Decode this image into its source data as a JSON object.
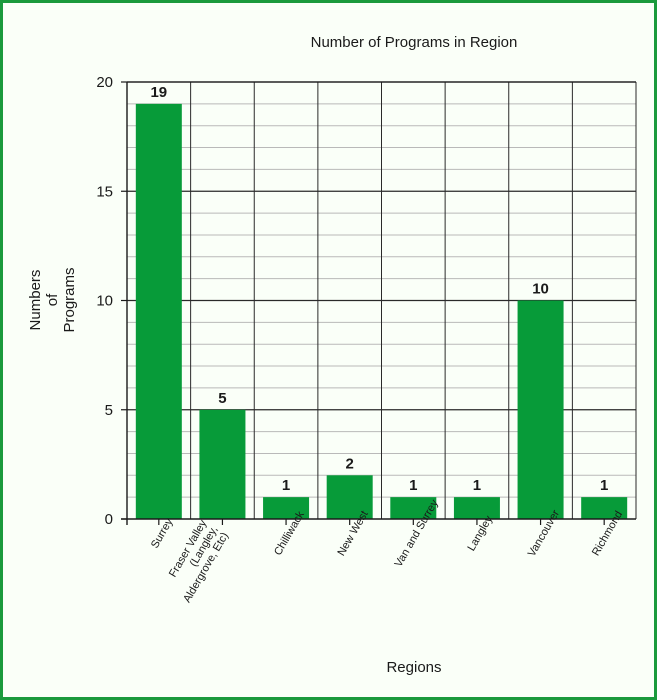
{
  "chart_data": {
    "type": "bar",
    "title": "Number of Programs in Region",
    "xlabel": "Regions",
    "ylabel": [
      "Numbers",
      "of",
      "Programs"
    ],
    "categories": [
      [
        "Surrey"
      ],
      [
        "Fraser Valley",
        "(Langley,",
        "Aldergrove, Etc)"
      ],
      [
        "Chilliwack"
      ],
      [
        "New West"
      ],
      [
        "Van and Surrey"
      ],
      [
        "Langley"
      ],
      [
        "Vancouver"
      ],
      [
        "Richmond"
      ]
    ],
    "values": [
      19,
      5,
      1,
      2,
      1,
      1,
      10,
      1
    ],
    "data_labels": [
      "19",
      "5",
      "1",
      "2",
      "1",
      "1",
      "10",
      "1"
    ],
    "ylim": [
      0,
      20
    ],
    "yticks": [
      "0",
      "5",
      "10",
      "15",
      "20"
    ],
    "grid": true,
    "bar_color": "#079b39",
    "frame_color": "#1a9a3c"
  }
}
